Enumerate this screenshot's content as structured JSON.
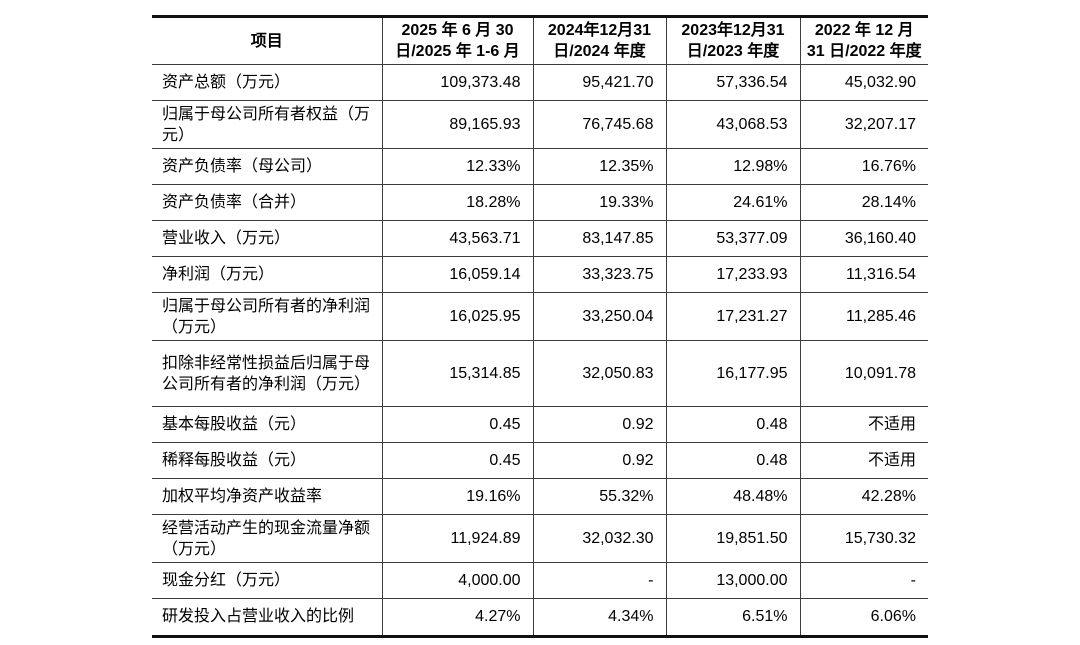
{
  "table": {
    "columns": [
      "项目",
      "2025 年 6 月 30\n日/2025 年 1-6 月",
      "2024年12月31\n日/2024 年度",
      "2023年12月31\n日/2023 年度",
      "2022 年 12 月\n31 日/2022 年度"
    ],
    "rows": [
      {
        "label": "资产总额（万元）",
        "values": [
          "109,373.48",
          "95,421.70",
          "57,336.54",
          "45,032.90"
        ]
      },
      {
        "label": "归属于母公司所有者权益（万元）",
        "values": [
          "89,165.93",
          "76,745.68",
          "43,068.53",
          "32,207.17"
        ]
      },
      {
        "label": "资产负债率（母公司）",
        "values": [
          "12.33%",
          "12.35%",
          "12.98%",
          "16.76%"
        ]
      },
      {
        "label": "资产负债率（合并）",
        "values": [
          "18.28%",
          "19.33%",
          "24.61%",
          "28.14%"
        ]
      },
      {
        "label": "营业收入（万元）",
        "values": [
          "43,563.71",
          "83,147.85",
          "53,377.09",
          "36,160.40"
        ]
      },
      {
        "label": "净利润（万元）",
        "values": [
          "16,059.14",
          "33,323.75",
          "17,233.93",
          "11,316.54"
        ]
      },
      {
        "label": "归属于母公司所有者的净利润（万元）",
        "values": [
          "16,025.95",
          "33,250.04",
          "17,231.27",
          "11,285.46"
        ]
      },
      {
        "label": "扣除非经常性损益后归属于母公司所有者的净利润（万元）",
        "values": [
          "15,314.85",
          "32,050.83",
          "16,177.95",
          "10,091.78"
        ]
      },
      {
        "label": "基本每股收益（元）",
        "values": [
          "0.45",
          "0.92",
          "0.48",
          "不适用"
        ]
      },
      {
        "label": "稀释每股收益（元）",
        "values": [
          "0.45",
          "0.92",
          "0.48",
          "不适用"
        ]
      },
      {
        "label": "加权平均净资产收益率",
        "values": [
          "19.16%",
          "55.32%",
          "48.48%",
          "42.28%"
        ]
      },
      {
        "label": "经营活动产生的现金流量净额（万元）",
        "values": [
          "11,924.89",
          "32,032.30",
          "19,851.50",
          "15,730.32"
        ]
      },
      {
        "label": "现金分红（万元）",
        "values": [
          "4,000.00",
          "-",
          "13,000.00",
          "-"
        ]
      },
      {
        "label": "研发投入占营业收入的比例",
        "values": [
          "4.27%",
          "4.34%",
          "6.51%",
          "6.06%"
        ]
      }
    ]
  },
  "colors": {
    "border_thick": "#111111",
    "border_thin": "#3d3d3d",
    "text": "#000000",
    "background": "#ffffff"
  }
}
